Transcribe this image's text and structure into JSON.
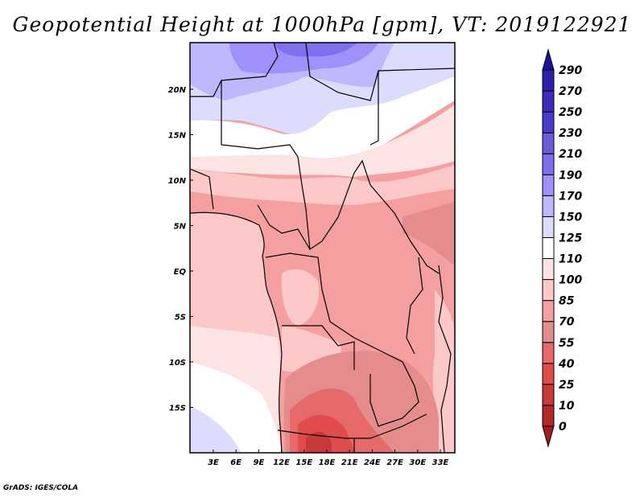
{
  "title": "Geopotential Height at 1000hPa [gpm], VT: 2019122921",
  "credit": "GrADS: IGES/COLA",
  "map": {
    "variable": "Geopotential Height at 1000hPa",
    "units": "gpm",
    "valid_time": "2019122921",
    "lon_range_deg": [
      0,
      35
    ],
    "lat_range_deg": [
      -20,
      25
    ],
    "lat_ticks": [
      "20N",
      "15N",
      "10N",
      "5N",
      "EQ",
      "5S",
      "10S",
      "15S"
    ],
    "lon_ticks": [
      "3E",
      "6E",
      "9E",
      "12E",
      "15E",
      "18E",
      "21E",
      "24E",
      "27E",
      "30E",
      "33E"
    ]
  },
  "colorbar": {
    "levels": [
      "0",
      "10",
      "25",
      "40",
      "55",
      "70",
      "85",
      "100",
      "110",
      "125",
      "150",
      "170",
      "190",
      "210",
      "230",
      "250",
      "270",
      "290"
    ],
    "colors": [
      "#b02828",
      "#c83a3a",
      "#e04c4c",
      "#e66a6a",
      "#e58c8c",
      "#f5a0a0",
      "#fcc8c8",
      "#fde4e4",
      "#ffffff",
      "#dcdcfc",
      "#c0b8fc",
      "#a090fc",
      "#8070f0",
      "#6a5ed8",
      "#4a3cc8",
      "#3a2cb8",
      "#2c22a8"
    ],
    "below_color": "#a01e1e",
    "above_color": "#2010a0"
  }
}
